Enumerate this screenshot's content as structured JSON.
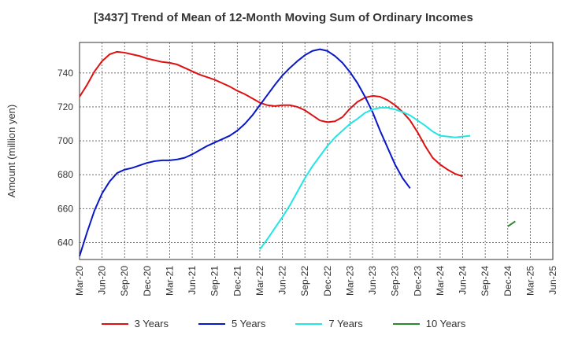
{
  "chart_data": {
    "type": "line",
    "title": "[3437]  Trend of Mean of 12-Month Moving Sum of Ordinary Incomes",
    "xlabel": "",
    "ylabel": "Amount (million yen)",
    "ylim": [
      630,
      758
    ],
    "y_ticks": [
      640,
      660,
      680,
      700,
      720,
      740
    ],
    "grid": true,
    "legend_position": "bottom",
    "x_tick_labels": [
      "Mar-20",
      "Jun-20",
      "Sep-20",
      "Dec-20",
      "Mar-21",
      "Jun-21",
      "Sep-21",
      "Dec-21",
      "Mar-22",
      "Jun-22",
      "Sep-22",
      "Dec-22",
      "Mar-23",
      "Jun-23",
      "Sep-23",
      "Dec-23",
      "Mar-24",
      "Jun-24",
      "Sep-24",
      "Dec-24",
      "Mar-25",
      "Jun-25"
    ],
    "series": [
      {
        "name": "3 Years",
        "color": "#dd1111",
        "start_index": 0,
        "values": [
          726,
          733,
          741,
          747,
          751,
          752.5,
          752,
          751,
          750,
          748.5,
          747.5,
          746.5,
          746,
          745,
          743,
          741,
          739,
          737.5,
          736,
          734,
          732,
          729.5,
          727.5,
          725,
          722.5,
          721,
          720.5,
          721,
          721,
          720,
          718,
          715,
          712,
          711,
          711.5,
          714,
          719,
          723,
          725.5,
          726.5,
          726,
          724,
          721,
          717,
          712,
          705,
          697,
          690,
          686,
          683,
          680.5,
          679
        ]
      },
      {
        "name": "5 Years",
        "color": "#0a17c8",
        "start_index": 0,
        "values": [
          632,
          646,
          659,
          669,
          676,
          681,
          683,
          684,
          685.5,
          687,
          688,
          688.5,
          688.5,
          689,
          690,
          692,
          694.5,
          697,
          699,
          701,
          703,
          706,
          710,
          715,
          721,
          727,
          733,
          738.5,
          743,
          747,
          750.5,
          753,
          754,
          753,
          750,
          746,
          740.5,
          734,
          726,
          717,
          706,
          696,
          686,
          678,
          672
        ]
      },
      {
        "name": "7 Years",
        "color": "#22e5e5",
        "start_index": 24,
        "values": [
          636,
          642,
          648.5,
          655,
          662,
          670,
          678,
          685,
          691,
          697,
          702,
          706,
          710,
          713,
          716.5,
          718.5,
          719.5,
          719.5,
          718.5,
          717,
          715,
          712,
          709,
          705.5,
          703,
          702.5,
          702,
          702.5,
          703
        ]
      },
      {
        "name": "10 Years",
        "color": "#2a8a2a",
        "start_index": 57,
        "values": [
          649.5,
          652.5
        ]
      }
    ]
  }
}
